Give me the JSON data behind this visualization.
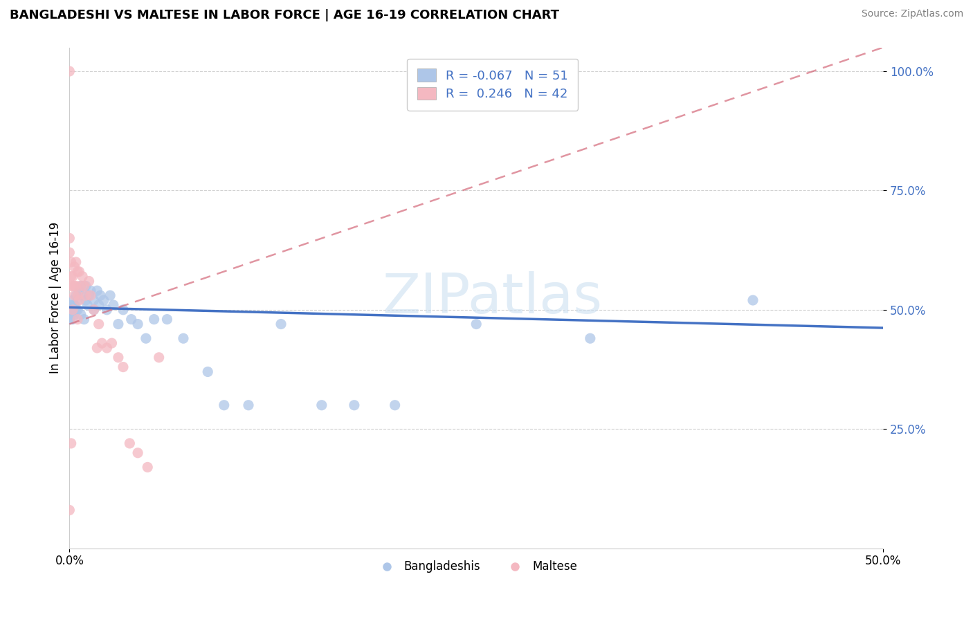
{
  "title": "BANGLADESHI VS MALTESE IN LABOR FORCE | AGE 16-19 CORRELATION CHART",
  "source": "Source: ZipAtlas.com",
  "ylabel": "In Labor Force | Age 16-19",
  "xlim": [
    0.0,
    0.5
  ],
  "ylim": [
    0.0,
    1.05
  ],
  "bangladeshi_color": "#aec6e8",
  "maltese_color": "#f4b8c1",
  "bangladeshi_line_color": "#4472c4",
  "maltese_line_color": "#d4697a",
  "maltese_dash_color": "#c8a0a8",
  "watermark": "ZIPatlas",
  "bangladeshi_x": [
    0.0,
    0.0,
    0.001,
    0.001,
    0.001,
    0.002,
    0.002,
    0.002,
    0.003,
    0.003,
    0.004,
    0.004,
    0.005,
    0.005,
    0.006,
    0.007,
    0.007,
    0.008,
    0.009,
    0.01,
    0.01,
    0.011,
    0.012,
    0.013,
    0.015,
    0.015,
    0.017,
    0.018,
    0.019,
    0.021,
    0.023,
    0.025,
    0.027,
    0.03,
    0.033,
    0.038,
    0.042,
    0.047,
    0.052,
    0.06,
    0.07,
    0.085,
    0.095,
    0.11,
    0.13,
    0.155,
    0.175,
    0.2,
    0.25,
    0.32,
    0.42
  ],
  "bangladeshi_y": [
    0.5,
    0.48,
    0.49,
    0.51,
    0.5,
    0.48,
    0.52,
    0.5,
    0.49,
    0.51,
    0.5,
    0.53,
    0.52,
    0.5,
    0.54,
    0.49,
    0.55,
    0.53,
    0.48,
    0.55,
    0.52,
    0.51,
    0.53,
    0.54,
    0.5,
    0.52,
    0.54,
    0.51,
    0.53,
    0.52,
    0.5,
    0.53,
    0.51,
    0.47,
    0.5,
    0.48,
    0.47,
    0.44,
    0.48,
    0.48,
    0.44,
    0.37,
    0.3,
    0.3,
    0.47,
    0.3,
    0.3,
    0.3,
    0.47,
    0.44,
    0.52
  ],
  "maltese_x": [
    0.0,
    0.0,
    0.0,
    0.0,
    0.001,
    0.001,
    0.001,
    0.001,
    0.002,
    0.002,
    0.002,
    0.003,
    0.003,
    0.003,
    0.004,
    0.004,
    0.005,
    0.005,
    0.005,
    0.006,
    0.006,
    0.007,
    0.008,
    0.009,
    0.01,
    0.012,
    0.013,
    0.015,
    0.017,
    0.018,
    0.02,
    0.023,
    0.026,
    0.03,
    0.033,
    0.037,
    0.042,
    0.048,
    0.055
  ],
  "maltese_y": [
    1.0,
    0.65,
    0.62,
    0.08,
    0.6,
    0.57,
    0.55,
    0.22,
    0.57,
    0.55,
    0.5,
    0.59,
    0.55,
    0.53,
    0.6,
    0.55,
    0.58,
    0.53,
    0.48,
    0.58,
    0.52,
    0.55,
    0.57,
    0.55,
    0.53,
    0.56,
    0.53,
    0.5,
    0.42,
    0.47,
    0.43,
    0.42,
    0.43,
    0.4,
    0.38,
    0.22,
    0.2,
    0.17,
    0.4
  ],
  "trend_blue_x0": 0.0,
  "trend_blue_y0": 0.505,
  "trend_blue_x1": 0.5,
  "trend_blue_y1": 0.462,
  "trend_pink_x0": 0.0,
  "trend_pink_y0": 0.47,
  "trend_pink_x1": 0.5,
  "trend_pink_y1": 1.05
}
